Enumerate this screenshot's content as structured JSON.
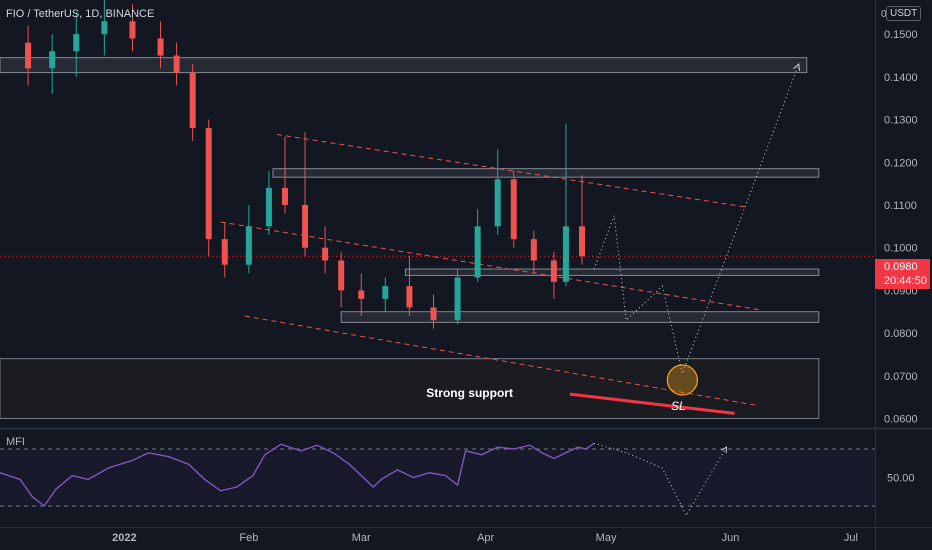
{
  "header": {
    "symbol_line": "FIO / TetherUS, 1D, BINANCE",
    "currency_button": "USDT",
    "zero_label": "0"
  },
  "price_tag": {
    "price": "0.0980",
    "countdown": "20:44:50"
  },
  "indicator": {
    "label": "MFI",
    "level_label": "50.00"
  },
  "annotations": {
    "support_text": "Strong support",
    "sl_text": "SL"
  },
  "colors": {
    "background": "#131722",
    "up": "#26a69a",
    "down": "#ef5350",
    "mfi": "#7e57c2",
    "channel": "#ef5350",
    "sl": "#f23645",
    "target": "#f7a21b"
  },
  "chart_data": {
    "type": "candlestick",
    "title": "FIO / TetherUS, 1D, BINANCE",
    "y_ticks": [
      "0.1500",
      "0.1400",
      "0.1300",
      "0.1200",
      "0.1100",
      "0.1000",
      "0.0900",
      "0.0800",
      "0.0700",
      "0.0600"
    ],
    "y_tick_values": [
      0.15,
      0.14,
      0.13,
      0.12,
      0.11,
      0.1,
      0.09,
      0.08,
      0.07,
      0.06
    ],
    "x_ticks": [
      "2022",
      "Feb",
      "Mar",
      "Apr",
      "May",
      "Jun",
      "Jul"
    ],
    "x_tick_dates": [
      "2022-01-01",
      "2022-02-01",
      "2022-03-01",
      "2022-04-01",
      "2022-05-01",
      "2022-06-01",
      "2022-07-01"
    ],
    "ylim": [
      0.058,
      0.158
    ],
    "xlim": [
      "2021-12-01",
      "2022-07-07"
    ],
    "last_price": 0.098,
    "resistance_zones": [
      {
        "low": 0.141,
        "high": 0.1445,
        "from": "2021-12-01",
        "to": "2022-06-20"
      },
      {
        "low": 0.1165,
        "high": 0.1185,
        "from": "2022-02-07",
        "to": "2022-06-23"
      },
      {
        "low": 0.0935,
        "high": 0.095,
        "from": "2022-03-12",
        "to": "2022-06-23"
      },
      {
        "low": 0.0825,
        "high": 0.085,
        "from": "2022-02-24",
        "to": "2022-06-23"
      }
    ],
    "support_zone": {
      "low": 0.06,
      "high": 0.074,
      "from": "2021-12-01",
      "to": "2022-06-23"
    },
    "channel_lines": [
      {
        "from": [
          "2022-02-08",
          0.1265
        ],
        "to": [
          "2022-06-05",
          0.1095
        ]
      },
      {
        "from": [
          "2022-01-25",
          0.106
        ],
        "to": [
          "2022-06-08",
          0.0855
        ]
      },
      {
        "from": [
          "2022-01-31",
          0.084
        ],
        "to": [
          "2022-06-08",
          0.063
        ]
      }
    ],
    "projection": [
      [
        "2022-04-28",
        0.095
      ],
      [
        "2022-05-03",
        0.1075
      ],
      [
        "2022-05-06",
        0.083
      ],
      [
        "2022-05-15",
        0.091
      ],
      [
        "2022-05-20",
        0.0705
      ],
      [
        "2022-06-18",
        0.143
      ]
    ],
    "target_circle": [
      "2022-05-20",
      0.069
    ],
    "sl_line": {
      "from": [
        "2022-04-22",
        0.0657
      ],
      "to": [
        "2022-06-02",
        0.0612
      ]
    },
    "candles_sampled": [
      [
        "2021-12-08",
        0.148,
        0.152,
        0.138,
        0.142
      ],
      [
        "2021-12-14",
        0.142,
        0.15,
        0.136,
        0.146
      ],
      [
        "2021-12-20",
        0.146,
        0.155,
        0.14,
        0.15
      ],
      [
        "2021-12-27",
        0.15,
        0.158,
        0.145,
        0.153
      ],
      [
        "2022-01-03",
        0.153,
        0.157,
        0.146,
        0.149
      ],
      [
        "2022-01-10",
        0.149,
        0.153,
        0.142,
        0.145
      ],
      [
        "2022-01-14",
        0.145,
        0.148,
        0.138,
        0.141
      ],
      [
        "2022-01-18",
        0.141,
        0.143,
        0.125,
        0.128
      ],
      [
        "2022-01-22",
        0.128,
        0.13,
        0.098,
        0.102
      ],
      [
        "2022-01-26",
        0.102,
        0.106,
        0.093,
        0.096
      ],
      [
        "2022-02-01",
        0.096,
        0.11,
        0.094,
        0.105
      ],
      [
        "2022-02-06",
        0.105,
        0.118,
        0.103,
        0.114
      ],
      [
        "2022-02-10",
        0.114,
        0.126,
        0.108,
        0.11
      ],
      [
        "2022-02-15",
        0.11,
        0.127,
        0.098,
        0.1
      ],
      [
        "2022-02-20",
        0.1,
        0.105,
        0.094,
        0.097
      ],
      [
        "2022-02-24",
        0.097,
        0.099,
        0.086,
        0.09
      ],
      [
        "2022-03-01",
        0.09,
        0.094,
        0.084,
        0.088
      ],
      [
        "2022-03-07",
        0.088,
        0.093,
        0.085,
        0.091
      ],
      [
        "2022-03-13",
        0.091,
        0.098,
        0.084,
        0.086
      ],
      [
        "2022-03-19",
        0.086,
        0.089,
        0.081,
        0.083
      ],
      [
        "2022-03-25",
        0.083,
        0.095,
        0.082,
        0.093
      ],
      [
        "2022-03-30",
        0.093,
        0.109,
        0.092,
        0.105
      ],
      [
        "2022-04-04",
        0.105,
        0.123,
        0.103,
        0.116
      ],
      [
        "2022-04-08",
        0.116,
        0.118,
        0.1,
        0.102
      ],
      [
        "2022-04-13",
        0.102,
        0.104,
        0.094,
        0.097
      ],
      [
        "2022-04-18",
        0.097,
        0.099,
        0.088,
        0.092
      ],
      [
        "2022-04-21",
        0.092,
        0.129,
        0.091,
        0.105
      ],
      [
        "2022-04-25",
        0.105,
        0.117,
        0.096,
        0.098
      ]
    ],
    "mfi": {
      "name": "MFI",
      "ylim": [
        0,
        100
      ],
      "bands": [
        80,
        20
      ],
      "tick_label": "50.00",
      "points": [
        [
          "2021-12-01",
          55
        ],
        [
          "2021-12-06",
          48
        ],
        [
          "2021-12-09",
          30
        ],
        [
          "2021-12-12",
          20
        ],
        [
          "2021-12-15",
          38
        ],
        [
          "2021-12-19",
          52
        ],
        [
          "2021-12-23",
          48
        ],
        [
          "2021-12-28",
          60
        ],
        [
          "2022-01-03",
          68
        ],
        [
          "2022-01-07",
          76
        ],
        [
          "2022-01-12",
          72
        ],
        [
          "2022-01-17",
          64
        ],
        [
          "2022-01-21",
          48
        ],
        [
          "2022-01-25",
          36
        ],
        [
          "2022-01-29",
          40
        ],
        [
          "2022-02-02",
          52
        ],
        [
          "2022-02-05",
          74
        ],
        [
          "2022-02-09",
          85
        ],
        [
          "2022-02-14",
          78
        ],
        [
          "2022-02-18",
          84
        ],
        [
          "2022-02-22",
          76
        ],
        [
          "2022-02-26",
          64
        ],
        [
          "2022-03-01",
          52
        ],
        [
          "2022-03-04",
          40
        ],
        [
          "2022-03-06",
          48
        ],
        [
          "2022-03-10",
          58
        ],
        [
          "2022-03-14",
          50
        ],
        [
          "2022-03-18",
          55
        ],
        [
          "2022-03-22",
          52
        ],
        [
          "2022-03-25",
          42
        ],
        [
          "2022-03-27",
          78
        ],
        [
          "2022-03-31",
          74
        ],
        [
          "2022-04-04",
          82
        ],
        [
          "2022-04-08",
          80
        ],
        [
          "2022-04-12",
          84
        ],
        [
          "2022-04-15",
          76
        ],
        [
          "2022-04-18",
          70
        ],
        [
          "2022-04-22",
          78
        ],
        [
          "2022-04-24",
          82
        ],
        [
          "2022-04-26",
          80
        ],
        [
          "2022-04-28",
          86
        ]
      ],
      "projection": [
        [
          "2022-04-28",
          86
        ],
        [
          "2022-05-06",
          76
        ],
        [
          "2022-05-15",
          60
        ],
        [
          "2022-05-21",
          10
        ],
        [
          "2022-05-31",
          82
        ]
      ]
    }
  }
}
